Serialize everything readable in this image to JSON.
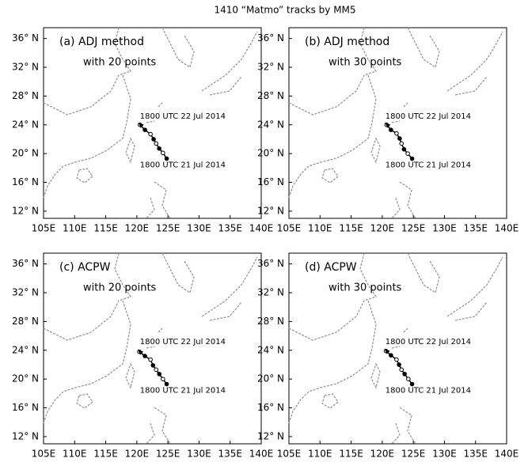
{
  "title": "1410 “Matmo” tracks by MM5",
  "axes": {
    "xlim": [
      105,
      140
    ],
    "ylim": [
      11,
      37.5
    ],
    "xticks": [
      {
        "value": 105,
        "label": "105E"
      },
      {
        "value": 110,
        "label": "110E"
      },
      {
        "value": 115,
        "label": "115E"
      },
      {
        "value": 120,
        "label": "120E"
      },
      {
        "value": 125,
        "label": "125E"
      },
      {
        "value": 130,
        "label": "130E"
      },
      {
        "value": 135,
        "label": "135E"
      },
      {
        "value": 140,
        "label": "140E"
      }
    ],
    "yticks": [
      {
        "value": 12,
        "label": "12° N"
      },
      {
        "value": 16,
        "label": "16° N"
      },
      {
        "value": 20,
        "label": "20° N"
      },
      {
        "value": 24,
        "label": "24° N"
      },
      {
        "value": 28,
        "label": "28° N"
      },
      {
        "value": 32,
        "label": "32° N"
      },
      {
        "value": 36,
        "label": "36° N"
      }
    ]
  },
  "panels": [
    {
      "label": "(a) ADJ method",
      "subtitle": "with 20 points",
      "annotations": [
        "1800 UTC 22 Jul 2014",
        "1800 UTC 21 Jul 2014"
      ],
      "track": {
        "lon": [
          124.8,
          124.2,
          123.6,
          123.1,
          122.7,
          122.2,
          121.3,
          120.5
        ],
        "lat": [
          19.3,
          20.1,
          20.7,
          21.4,
          22.0,
          22.7,
          23.3,
          24.0
        ]
      }
    },
    {
      "label": "(b) ADJ method",
      "subtitle": "with 30 points",
      "annotations": [
        "1800 UTC 22 Jul 2014",
        "1800 UTC 21 Jul 2014"
      ],
      "track": {
        "lon": [
          124.8,
          124.1,
          123.5,
          123.1,
          122.8,
          122.3,
          121.4,
          120.7
        ],
        "lat": [
          19.3,
          20.0,
          20.6,
          21.4,
          22.1,
          22.8,
          23.3,
          24.0
        ]
      }
    },
    {
      "label": "(c) ACPW",
      "subtitle": "with 20 points",
      "annotations": [
        "1800 UTC 22 Jul 2014",
        "1800 UTC 21 Jul 2014"
      ],
      "track": {
        "lon": [
          124.8,
          124.2,
          123.6,
          123.1,
          122.6,
          122.2,
          121.3,
          120.4
        ],
        "lat": [
          19.3,
          20.0,
          20.7,
          21.3,
          21.9,
          22.7,
          23.2,
          23.8
        ]
      }
    },
    {
      "label": "(d) ACPW",
      "subtitle": "with 30 points",
      "annotations": [
        "1800 UTC 22 Jul 2014",
        "1800 UTC 21 Jul 2014"
      ],
      "track": {
        "lon": [
          124.8,
          124.2,
          123.6,
          123.1,
          122.7,
          122.3,
          121.4,
          120.6
        ],
        "lat": [
          19.3,
          20.0,
          20.7,
          21.3,
          22.0,
          22.7,
          23.3,
          23.9
        ]
      }
    }
  ]
}
